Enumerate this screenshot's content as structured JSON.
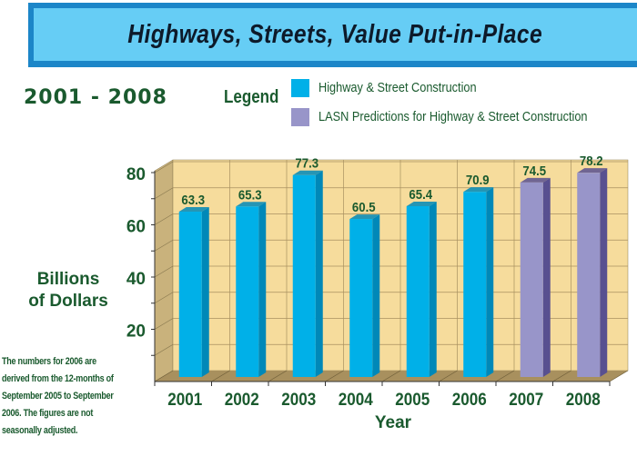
{
  "chart_data": {
    "type": "bar",
    "title": "Highways, Streets, Value Put-in-Place",
    "subtitle": "2001 - 2008",
    "xlabel": "Year",
    "ylabel": "Billions of Dollars",
    "ylim": [
      0,
      80
    ],
    "yticks": [
      20,
      40,
      60,
      80
    ],
    "grid": true,
    "categories": [
      "2001",
      "2002",
      "2003",
      "2004",
      "2005",
      "2006",
      "2007",
      "2008"
    ],
    "values": [
      63.3,
      65.3,
      77.3,
      60.5,
      65.4,
      70.9,
      74.5,
      78.2
    ],
    "value_labels": [
      "63.3",
      "65.3",
      "77.3",
      "60.5",
      "65.4",
      "70.9",
      "74.5",
      "78.2"
    ],
    "series_type": [
      "actual",
      "actual",
      "actual",
      "actual",
      "actual",
      "actual",
      "prediction",
      "prediction"
    ],
    "legend": {
      "title": "Legend",
      "placement": "top-right",
      "entries": [
        {
          "label": "Highway & Street Construction",
          "color": "#00b0e8"
        },
        {
          "label": "LASN Predictions for Highway & Street Construction",
          "color": "#9895c9"
        }
      ]
    },
    "note": "The numbers for 2006 are derived from the 12-months of September 2005 to September 2006. The figures are not seasonally adjusted."
  },
  "colors": {
    "actual": "#00b0e8",
    "actual_side": "#0088b8",
    "prediction": "#9895c9",
    "prediction_side": "#585090",
    "wall": "#f6dc9c",
    "side_wall": "#c9b27c",
    "floor": "#a8905e",
    "text": "#1a5a2e"
  }
}
